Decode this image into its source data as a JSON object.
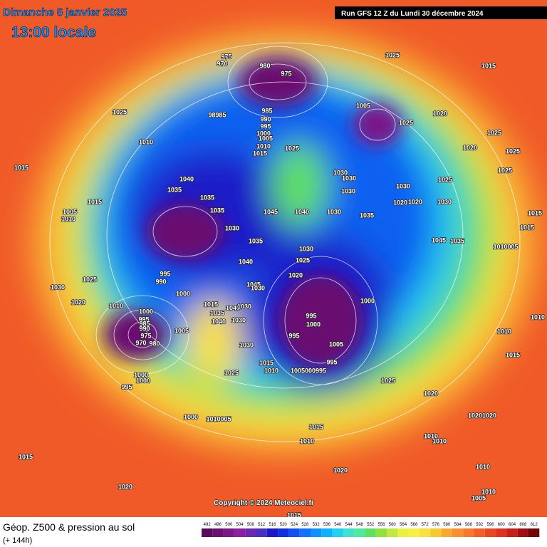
{
  "header": {
    "date": "Dimanche 5 janvier 2025",
    "time": "13:00 locale",
    "run": "Run GFS 12 Z du Lundi 30 décembre 2024"
  },
  "copyright": "Copyright © 2024 Meteociel.fr",
  "footer": {
    "title": "Géop. Z500 & pression au sol",
    "lead": "(+ 144h)"
  },
  "colorbar": {
    "values": [
      492,
      496,
      500,
      504,
      508,
      512,
      516,
      520,
      524,
      528,
      532,
      536,
      540,
      544,
      548,
      552,
      556,
      560,
      564,
      568,
      572,
      576,
      580,
      584,
      588,
      592,
      596,
      600,
      604,
      608,
      612
    ],
    "colors": [
      "#5a0a5a",
      "#6a1070",
      "#7a1888",
      "#8a20a0",
      "#6a28b0",
      "#4a30c0",
      "#1a1ac8",
      "#1030e0",
      "#1050f0",
      "#1070ff",
      "#1090ff",
      "#10b0ff",
      "#20d0f0",
      "#40e0d0",
      "#50e8a0",
      "#60e060",
      "#90e040",
      "#c0e840",
      "#e8f040",
      "#f8f040",
      "#f8e040",
      "#f8c830",
      "#f8a830",
      "#f89030",
      "#f87830",
      "#f06028",
      "#e84820",
      "#e03020",
      "#c82018",
      "#a01010",
      "#700808"
    ]
  },
  "isobars": [
    "975",
    "970",
    "980",
    "975",
    "1025",
    "1015",
    "1025",
    "98985",
    "985",
    "990",
    "995",
    "1000",
    "1005",
    "1010",
    "1015",
    "1025",
    "1005",
    "1025",
    "1020",
    "1010",
    "1025",
    "1020",
    "1025",
    "1025",
    "1015",
    "1040",
    "1035",
    "1035",
    "1035",
    "1030",
    "1030",
    "1030",
    "1030",
    "1020",
    "1020",
    "1025",
    "1030",
    "1045",
    "1040",
    "1030",
    "1035",
    "1015",
    "1005",
    "1010",
    "1030",
    "1035",
    "1045",
    "1035",
    "1010005",
    "1015",
    "1015",
    "1030",
    "1025",
    "1040",
    "1020",
    "995",
    "990",
    "1000",
    "1045",
    "1030",
    "1030",
    "1025",
    "1020",
    "1010",
    "1015",
    "1035",
    "1040",
    "1030",
    "1040",
    "1030",
    "1000",
    "1000",
    "995",
    "995",
    "1000",
    "995",
    "1005",
    "1010",
    "1010",
    "1030",
    "1005",
    "1015",
    "1010",
    "995",
    "1005000995",
    "1025",
    "1015",
    "1000",
    "1000",
    "995",
    "1025",
    "1020",
    "1000",
    "1010005",
    "1015",
    "10201020",
    "1010",
    "1010",
    "1010",
    "1015",
    "1020",
    "1010",
    "1020",
    "1010",
    "1005",
    "1015",
    "985",
    "990",
    "975",
    "970",
    "980"
  ]
}
